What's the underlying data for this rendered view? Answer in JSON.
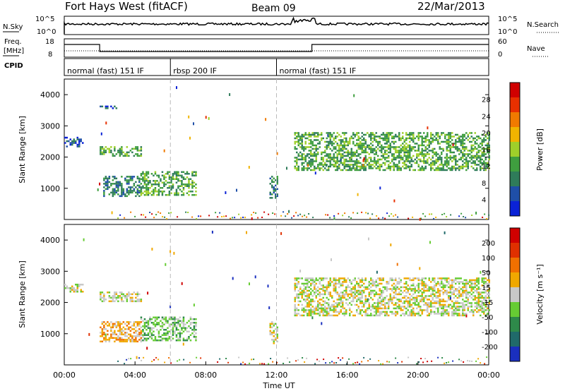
{
  "header": {
    "station": "Fort Hays West (fitACF)",
    "beam": "Beam 09",
    "date": "22/Mar/2013"
  },
  "colors": {
    "power": [
      "#0a22d6",
      "#1f4fa8",
      "#2f7c5a",
      "#3f9e3f",
      "#9fcf2a",
      "#f0b400",
      "#f07a00",
      "#e83000",
      "#d00000"
    ],
    "velocity": [
      "#1a2fbf",
      "#206a6a",
      "#2e8a4a",
      "#66cc33",
      "#c8c8c8",
      "#f0a800",
      "#f07000",
      "#e03000",
      "#d00000"
    ]
  },
  "noise_panel": {
    "left_label": "N.Sky",
    "right_label": "N.Search",
    "left_ticks": [
      "10^5",
      "10^0"
    ],
    "right_ticks": [
      "10^5",
      "10^0"
    ]
  },
  "freq_panel": {
    "left_label_1": "Freq.",
    "left_label_2": "[MHz]",
    "right_label": "Nave",
    "left_ticks": [
      "18",
      "8"
    ],
    "right_ticks": [
      "60",
      "0"
    ]
  },
  "cpid_panel": {
    "label": "CPID",
    "segments": [
      {
        "start": 0,
        "end": 6,
        "text": "normal (fast) 151 IF"
      },
      {
        "start": 6,
        "end": 12,
        "text": "rbsp 200 IF"
      },
      {
        "start": 12,
        "end": 24,
        "text": "normal (fast) 151 IF"
      }
    ]
  },
  "chart_data": [
    {
      "type": "heatmap",
      "title": "",
      "ylabel": "Slant Range [km]",
      "ylim": [
        0,
        4500
      ],
      "yticks": [
        "1000",
        "2000",
        "3000",
        "4000"
      ],
      "colorbar": {
        "label": "Power [dB]",
        "range": [
          0,
          32
        ],
        "ticks": [
          "4",
          "8",
          "12",
          "16",
          "20",
          "24",
          "28"
        ]
      },
      "echo_regions": [
        {
          "t0": 0.0,
          "t1": 1.0,
          "r0": 2350,
          "r1": 2650,
          "level": 1
        },
        {
          "t0": 2.0,
          "t1": 4.3,
          "r0": 2050,
          "r1": 2350,
          "level": 3
        },
        {
          "t0": 2.0,
          "t1": 3.0,
          "r0": 3550,
          "r1": 3650,
          "level": 1
        },
        {
          "t0": 2.2,
          "t1": 4.3,
          "r0": 750,
          "r1": 1400,
          "level": 2
        },
        {
          "t0": 4.3,
          "t1": 7.4,
          "r0": 800,
          "r1": 1550,
          "level": 3
        },
        {
          "t0": 11.6,
          "t1": 12.0,
          "r0": 700,
          "r1": 1400,
          "level": 2
        },
        {
          "t0": 13.0,
          "t1": 24.0,
          "r0": 1600,
          "r1": 2800,
          "level": 3
        }
      ]
    },
    {
      "type": "heatmap",
      "title": "",
      "ylabel": "Slant Range [km]",
      "xlabel": "Time UT",
      "ylim": [
        0,
        4500
      ],
      "yticks": [
        "1000",
        "2000",
        "3000",
        "4000"
      ],
      "xticks": [
        "00:00",
        "04:00",
        "08:00",
        "12:00",
        "16:00",
        "20:00",
        "00:00"
      ],
      "colorbar": {
        "label": "Velocity [m s⁻¹]",
        "range": [
          -250,
          250
        ],
        "ticks": [
          "200",
          "100",
          "50",
          "15",
          "-15",
          "-50",
          "-100",
          "-200"
        ]
      },
      "echo_regions": [
        {
          "t0": 0.0,
          "t1": 1.0,
          "r0": 2350,
          "r1": 2600,
          "level": 4
        },
        {
          "t0": 2.0,
          "t1": 4.3,
          "r0": 2050,
          "r1": 2350,
          "level": 4
        },
        {
          "t0": 2.0,
          "t1": 4.3,
          "r0": 750,
          "r1": 1400,
          "level": 5
        },
        {
          "t0": 4.3,
          "t1": 7.4,
          "r0": 800,
          "r1": 1550,
          "level": 3
        },
        {
          "t0": 11.6,
          "t1": 12.0,
          "r0": 700,
          "r1": 1400,
          "level": 4
        },
        {
          "t0": 13.0,
          "t1": 24.0,
          "r0": 1600,
          "r1": 2800,
          "level": 4
        }
      ]
    }
  ]
}
